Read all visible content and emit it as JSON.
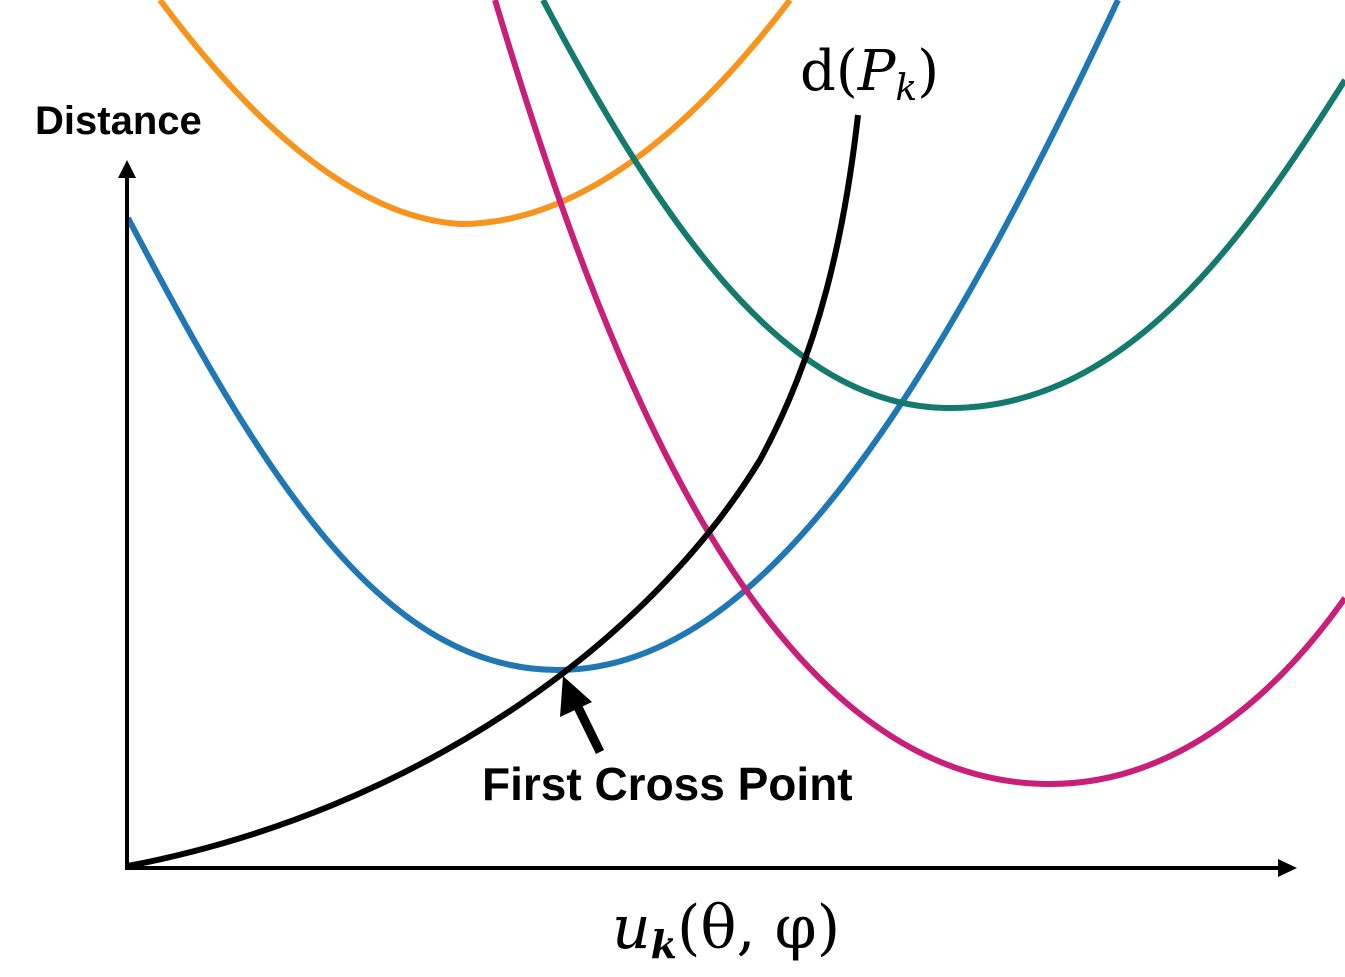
{
  "diagram": {
    "y_axis_label": "Distance",
    "x_axis_label": {
      "u": "u",
      "sub": "k",
      "args": "(θ, φ)"
    },
    "black_curve_label": {
      "d": "d(",
      "P": "P",
      "sub": "k",
      "close": ")"
    },
    "annotation": "First Cross Point",
    "colors": {
      "axis": "#000000",
      "orange": "#f7941d",
      "blue": "#1f77b4",
      "magenta": "#c71f7a",
      "teal": "#157a6e",
      "black_curve": "#000000"
    }
  }
}
